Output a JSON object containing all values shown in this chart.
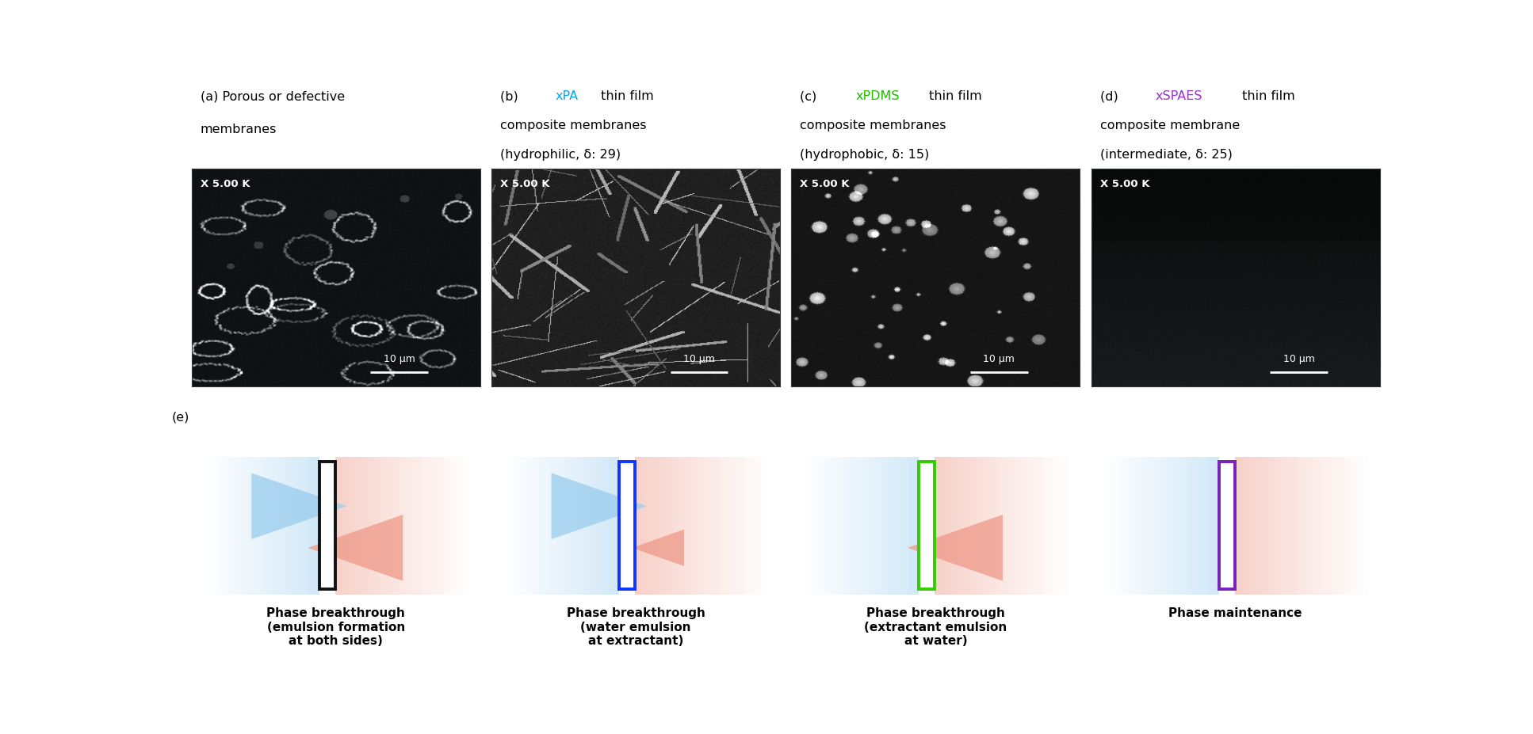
{
  "fig_width": 19.34,
  "fig_height": 9.28,
  "background_color": "#ffffff",
  "panel_labels": [
    {
      "letter": "(a)",
      "colored_word": "",
      "rest_line1": "Porous or defective",
      "rest_line2": "membranes",
      "colored_color": "#000000"
    },
    {
      "letter": "(b)",
      "colored_word": "xPA",
      "rest_line1": " thin film",
      "rest_line2": "composite membranes\n(hydrophilic, δ: 29)",
      "colored_color": "#00aaee"
    },
    {
      "letter": "(c)",
      "colored_word": "xPDMS",
      "rest_line1": " thin film",
      "rest_line2": "composite membranes\n(hydrophobic, δ: 15)",
      "colored_color": "#22bb00"
    },
    {
      "letter": "(d)",
      "colored_word": "xSPAES",
      "rest_line1": " thin film",
      "rest_line2": "composite membrane\n(intermediate, δ: 25)",
      "colored_color": "#9933cc"
    }
  ],
  "scale_bar_text": "10 μm",
  "magnification_text": "X 5.00 K",
  "bottom_label": "(e)",
  "diagrams": [
    {
      "membrane_border_color": "#111111",
      "membrane_fill": "white",
      "blue_arrow_right": true,
      "pink_arrow_left": true,
      "blue_arrow_size": "large",
      "pink_arrow_size": "large",
      "caption": "Phase breakthrough\n(emulsion formation\nat both sides)"
    },
    {
      "membrane_border_color": "#1133ff",
      "membrane_fill": "white",
      "blue_arrow_right": true,
      "pink_arrow_left": false,
      "blue_arrow_size": "large",
      "pink_arrow_size": "small",
      "caption": "Phase breakthrough\n(water emulsion\nat extractant)"
    },
    {
      "membrane_border_color": "#33cc00",
      "membrane_fill": "white",
      "blue_arrow_right": false,
      "pink_arrow_left": true,
      "blue_arrow_size": "none",
      "pink_arrow_size": "large",
      "caption": "Phase breakthrough\n(extractant emulsion\nat water)"
    },
    {
      "membrane_border_color": "#7722bb",
      "membrane_fill": "white",
      "blue_arrow_right": false,
      "pink_arrow_left": false,
      "blue_arrow_size": "none",
      "pink_arrow_size": "none",
      "caption": "Phase maintenance"
    }
  ],
  "blue_color": "#99ccee",
  "pink_color": "#ee9988"
}
